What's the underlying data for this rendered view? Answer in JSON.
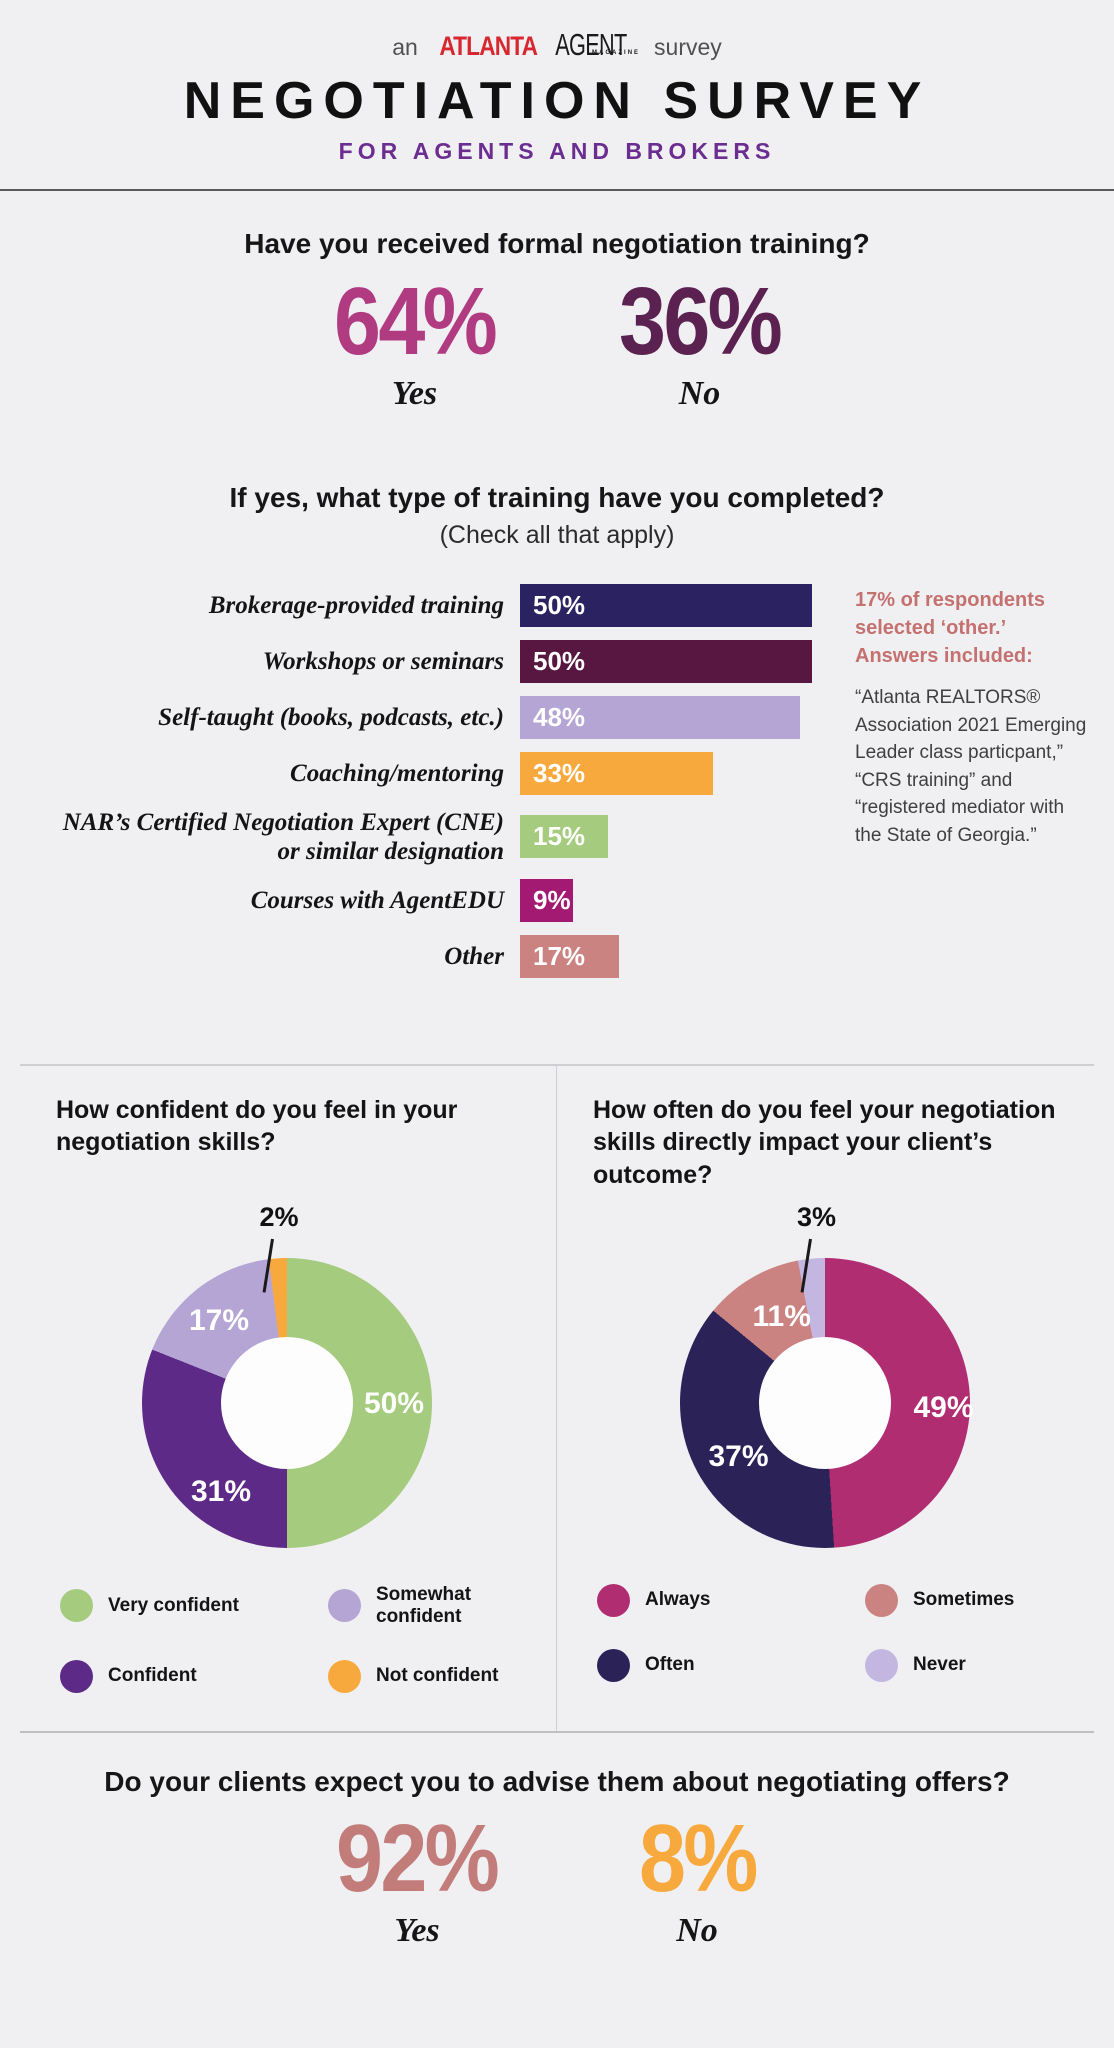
{
  "header": {
    "prefix": "an",
    "brand_red": "ATLANTA",
    "brand_black": "AGENT",
    "brand_sub": "MAGAZINE",
    "suffix": "survey",
    "title": "NEGOTIATION SURVEY",
    "subtitle": "FOR AGENTS AND BROKERS"
  },
  "note": {
    "heading": "17% of respondents selected ‘other.’ Answers included:",
    "body": "“Atlanta REALTORS® Association 2021 Emerging Leader class particpant,” “CRS training” and “registered mediator with the State of Georgia.”"
  },
  "chart_data": [
    {
      "type": "stat_pair",
      "title": "Have you received formal negotiation training?",
      "stats": [
        {
          "label": "Yes",
          "value": 64,
          "display": "64%",
          "color": "#b03b81"
        },
        {
          "label": "No",
          "value": 36,
          "display": "36%",
          "color": "#5b2150"
        }
      ]
    },
    {
      "type": "bar",
      "orientation": "horizontal",
      "title": "If yes, what type of training have you completed?",
      "subtitle": "(Check all that apply)",
      "unit": "%",
      "xlim": [
        0,
        50
      ],
      "categories": [
        "Brokerage-provided training",
        "Workshops or seminars",
        "Self-taught (books, podcasts, etc.)",
        "Coaching/mentoring",
        "NAR’s Certified Negotiation Expert (CNE) or similar designation",
        "Courses with AgentEDU",
        "Other"
      ],
      "values": [
        50,
        50,
        48,
        33,
        15,
        9,
        17
      ],
      "value_labels": [
        "50%",
        "50%",
        "48%",
        "33%",
        "15%",
        "9%",
        "17%"
      ],
      "colors": [
        "#2b2261",
        "#571740",
        "#b4a5d5",
        "#f8a93e",
        "#a5cb7e",
        "#a31a72",
        "#ca8381"
      ]
    },
    {
      "type": "donut",
      "title": "How confident do you feel in your negotiation skills?",
      "legend_position": "bottom",
      "segments": [
        {
          "label": "Very confident",
          "value": 50,
          "display": "50%",
          "color": "#a5cb7e"
        },
        {
          "label": "Confident",
          "value": 31,
          "display": "31%",
          "color": "#5d2b87"
        },
        {
          "label": "Somewhat confident",
          "value": 17,
          "display": "17%",
          "color": "#b4a5d5"
        },
        {
          "label": "Not confident",
          "value": 2,
          "display": "2%",
          "color": "#f8a93e"
        }
      ],
      "callout": {
        "segment": "Not confident",
        "display": "2%"
      }
    },
    {
      "type": "donut",
      "title": "How often do you feel your negotiation skills directly impact your client’s outcome?",
      "legend_position": "bottom",
      "segments": [
        {
          "label": "Always",
          "value": 49,
          "display": "49%",
          "color": "#b12d72"
        },
        {
          "label": "Often",
          "value": 37,
          "display": "37%",
          "color": "#2b2357"
        },
        {
          "label": "Sometimes",
          "value": 11,
          "display": "11%",
          "color": "#ca8381"
        },
        {
          "label": "Never",
          "value": 3,
          "display": "3%",
          "color": "#c3b7e2"
        }
      ],
      "callout": {
        "segment": "Never",
        "display": "3%"
      }
    },
    {
      "type": "stat_pair",
      "title": "Do your clients expect you to advise them about negotiating offers?",
      "stats": [
        {
          "label": "Yes",
          "value": 92,
          "display": "92%",
          "color": "#c27d7a"
        },
        {
          "label": "No",
          "value": 8,
          "display": "8%",
          "color": "#f8a93e"
        }
      ]
    }
  ]
}
